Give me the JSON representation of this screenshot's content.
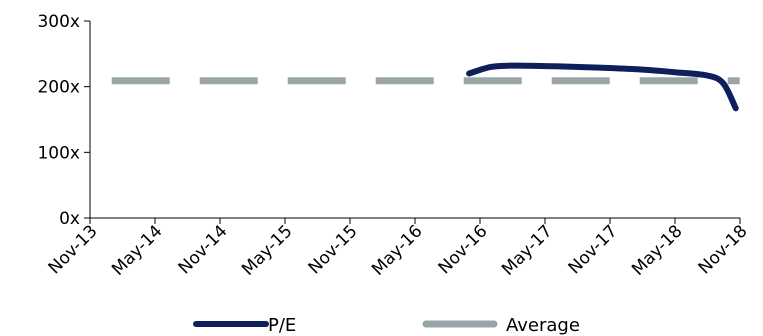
{
  "chart_data": {
    "type": "line",
    "x_ticks": [
      "Nov-13",
      "May-14",
      "Nov-14",
      "May-15",
      "Nov-15",
      "May-16",
      "Nov-16",
      "May-17",
      "Nov-17",
      "May-18",
      "Nov-18"
    ],
    "y_ticks": [
      "0x",
      "100x",
      "200x",
      "300x"
    ],
    "ylim": [
      0,
      300
    ],
    "grid": false,
    "legend_position": "bottom",
    "series": [
      {
        "name": "P/E",
        "style": "solid",
        "color": "#0e1f5b",
        "points": [
          {
            "x": "2016-10-01",
            "y": 220
          },
          {
            "x": "2016-12-01",
            "y": 230
          },
          {
            "x": "2017-02-01",
            "y": 232
          },
          {
            "x": "2017-06-01",
            "y": 231
          },
          {
            "x": "2017-10-01",
            "y": 229
          },
          {
            "x": "2018-02-01",
            "y": 226
          },
          {
            "x": "2018-05-01",
            "y": 222
          },
          {
            "x": "2018-08-01",
            "y": 217
          },
          {
            "x": "2018-09-15",
            "y": 205
          },
          {
            "x": "2018-10-20",
            "y": 167
          }
        ]
      },
      {
        "name": "Average",
        "style": "dashed",
        "color": "#9aa5a8",
        "points": [
          {
            "x": "2014-01-01",
            "y": 209
          },
          {
            "x": "2018-10-31",
            "y": 209
          }
        ]
      }
    ]
  }
}
